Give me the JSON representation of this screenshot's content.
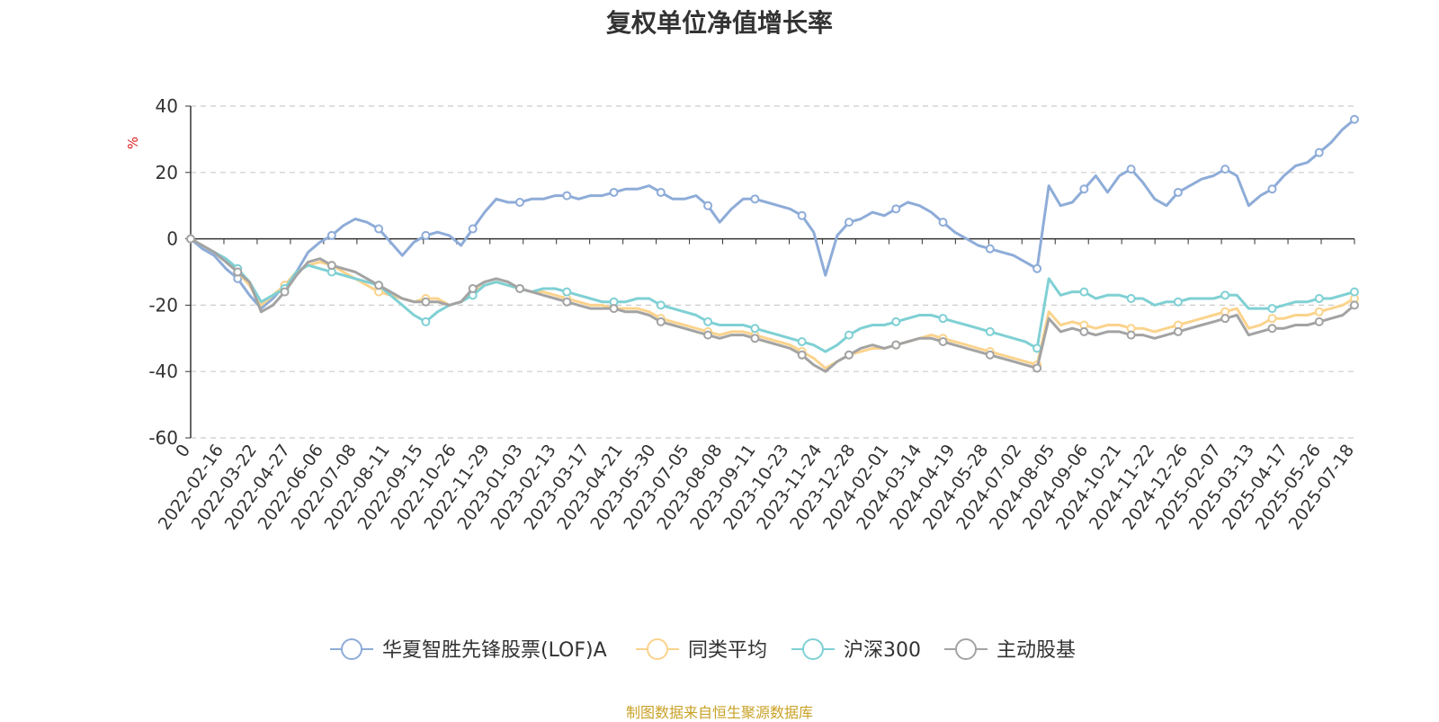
{
  "title": "复权单位净值增长率",
  "source": "制图数据来自恒生聚源数据库",
  "chart_data": {
    "type": "line",
    "ylabel": "%",
    "ylim": [
      -60,
      40
    ],
    "yticks": [
      40,
      20,
      0,
      -20,
      -40,
      -60
    ],
    "grid": true,
    "legend_position": "bottom",
    "x_tick_labels": [
      "0",
      "2022-02-16",
      "2022-03-22",
      "2022-04-27",
      "2022-06-06",
      "2022-07-08",
      "2022-08-11",
      "2022-09-15",
      "2022-10-26",
      "2022-11-29",
      "2023-01-03",
      "2023-02-13",
      "2023-03-17",
      "2023-04-21",
      "2023-05-30",
      "2023-07-05",
      "2023-08-08",
      "2023-09-11",
      "2023-10-23",
      "2023-11-24",
      "2023-12-28",
      "2024-02-01",
      "2024-03-14",
      "2024-04-19",
      "2024-05-28",
      "2024-07-02",
      "2024-08-05",
      "2024-09-06",
      "2024-10-21",
      "2024-11-22",
      "2024-12-26",
      "2025-02-07",
      "2025-03-13",
      "2025-04-17",
      "2025-05-26",
      "2025-07-18"
    ],
    "series": [
      {
        "name": "华夏智胜先锋股票(LOF)A",
        "color": "#8eacd8",
        "values": [
          0,
          -3,
          -5,
          -9,
          -12,
          -17,
          -21,
          -18,
          -14,
          -10,
          -4,
          -1,
          1,
          4,
          6,
          5,
          3,
          -1,
          -5,
          -1,
          1,
          2,
          1,
          -2,
          3,
          8,
          12,
          11,
          11,
          12,
          12,
          13,
          13,
          12,
          13,
          13,
          14,
          15,
          15,
          16,
          14,
          12,
          12,
          13,
          10,
          5,
          9,
          12,
          12,
          11,
          10,
          9,
          7,
          2,
          -11,
          1,
          5,
          6,
          8,
          7,
          9,
          11,
          10,
          8,
          5,
          2,
          0,
          -2,
          -3,
          -4,
          -5,
          -7,
          -9,
          16,
          10,
          11,
          15,
          19,
          14,
          19,
          21,
          17,
          12,
          10,
          14,
          16,
          18,
          19,
          21,
          19,
          10,
          13,
          15,
          19,
          22,
          23,
          26,
          29,
          33,
          36
        ]
      },
      {
        "name": "同类平均",
        "color": "#fbd38c",
        "values": [
          0,
          -2,
          -4,
          -7,
          -10,
          -14,
          -20,
          -17,
          -14,
          -10,
          -8,
          -7,
          -8,
          -10,
          -12,
          -14,
          -16,
          -17,
          -18,
          -19,
          -18,
          -18,
          -20,
          -19,
          -16,
          -14,
          -13,
          -14,
          -15,
          -16,
          -16,
          -17,
          -18,
          -19,
          -20,
          -20,
          -21,
          -21,
          -21,
          -22,
          -24,
          -25,
          -26,
          -27,
          -28,
          -29,
          -28,
          -28,
          -29,
          -30,
          -31,
          -32,
          -34,
          -36,
          -39,
          -37,
          -35,
          -34,
          -33,
          -33,
          -32,
          -31,
          -30,
          -29,
          -30,
          -31,
          -32,
          -33,
          -34,
          -35,
          -36,
          -37,
          -38,
          -22,
          -26,
          -25,
          -26,
          -27,
          -26,
          -26,
          -27,
          -27,
          -28,
          -27,
          -26,
          -25,
          -24,
          -23,
          -22,
          -21,
          -27,
          -26,
          -24,
          -24,
          -23,
          -23,
          -22,
          -21,
          -20,
          -18
        ]
      },
      {
        "name": "沪深300",
        "color": "#7fd0d4",
        "values": [
          0,
          -2,
          -4,
          -6,
          -9,
          -13,
          -19,
          -17,
          -15,
          -10,
          -8,
          -9,
          -10,
          -11,
          -12,
          -13,
          -14,
          -17,
          -20,
          -23,
          -25,
          -22,
          -20,
          -19,
          -17,
          -14,
          -13,
          -14,
          -15,
          -16,
          -15,
          -15,
          -16,
          -17,
          -18,
          -19,
          -19,
          -19,
          -18,
          -18,
          -20,
          -21,
          -22,
          -23,
          -25,
          -26,
          -26,
          -26,
          -27,
          -28,
          -29,
          -30,
          -31,
          -32,
          -34,
          -32,
          -29,
          -27,
          -26,
          -26,
          -25,
          -24,
          -23,
          -23,
          -24,
          -25,
          -26,
          -27,
          -28,
          -29,
          -30,
          -31,
          -33,
          -12,
          -17,
          -16,
          -16,
          -18,
          -17,
          -17,
          -18,
          -18,
          -20,
          -19,
          -19,
          -18,
          -18,
          -18,
          -17,
          -17,
          -21,
          -21,
          -21,
          -20,
          -19,
          -19,
          -18,
          -18,
          -17,
          -16
        ]
      },
      {
        "name": "主动股基",
        "color": "#a3a3a3",
        "values": [
          0,
          -2,
          -4,
          -7,
          -10,
          -13,
          -22,
          -20,
          -16,
          -11,
          -7,
          -6,
          -8,
          -9,
          -10,
          -12,
          -14,
          -16,
          -18,
          -19,
          -19,
          -19,
          -20,
          -19,
          -15,
          -13,
          -12,
          -13,
          -15,
          -16,
          -17,
          -18,
          -19,
          -20,
          -21,
          -21,
          -21,
          -22,
          -22,
          -23,
          -25,
          -26,
          -27,
          -28,
          -29,
          -30,
          -29,
          -29,
          -30,
          -31,
          -32,
          -33,
          -35,
          -38,
          -40,
          -37,
          -35,
          -33,
          -32,
          -33,
          -32,
          -31,
          -30,
          -30,
          -31,
          -32,
          -33,
          -34,
          -35,
          -36,
          -37,
          -38,
          -39,
          -24,
          -28,
          -27,
          -28,
          -29,
          -28,
          -28,
          -29,
          -29,
          -30,
          -29,
          -28,
          -27,
          -26,
          -25,
          -24,
          -23,
          -29,
          -28,
          -27,
          -27,
          -26,
          -26,
          -25,
          -24,
          -23,
          -20
        ]
      }
    ]
  }
}
